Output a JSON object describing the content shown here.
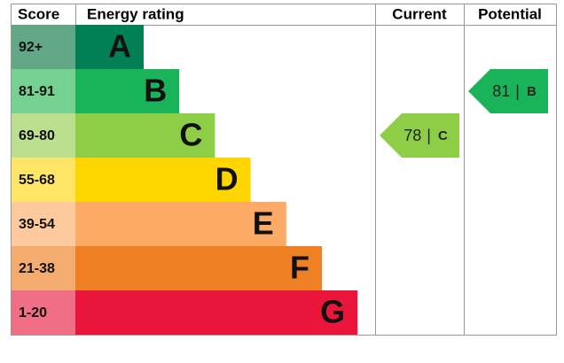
{
  "header": {
    "score": "Score",
    "rating": "Energy rating",
    "current": "Current",
    "potential": "Potential"
  },
  "rows": [
    {
      "score": "92+",
      "band": "A",
      "color": "#008054",
      "score_color": "#62a886"
    },
    {
      "score": "81-91",
      "band": "B",
      "color": "#19b459",
      "score_color": "#76d08f"
    },
    {
      "score": "69-80",
      "band": "C",
      "color": "#8dce46",
      "score_color": "#badf8e"
    },
    {
      "score": "55-68",
      "band": "D",
      "color": "#ffd500",
      "score_color": "#ffe566"
    },
    {
      "score": "39-54",
      "band": "E",
      "color": "#fcaa65",
      "score_color": "#fdc99d"
    },
    {
      "score": "21-38",
      "band": "F",
      "color": "#ef8023",
      "score_color": "#f4ab6e"
    },
    {
      "score": "1-20",
      "band": "G",
      "color": "#e9153b",
      "score_color": "#f06e86"
    }
  ],
  "separator": "|",
  "current": {
    "value": 78,
    "band": "C"
  },
  "potential": {
    "value": 81,
    "band": "B"
  }
}
